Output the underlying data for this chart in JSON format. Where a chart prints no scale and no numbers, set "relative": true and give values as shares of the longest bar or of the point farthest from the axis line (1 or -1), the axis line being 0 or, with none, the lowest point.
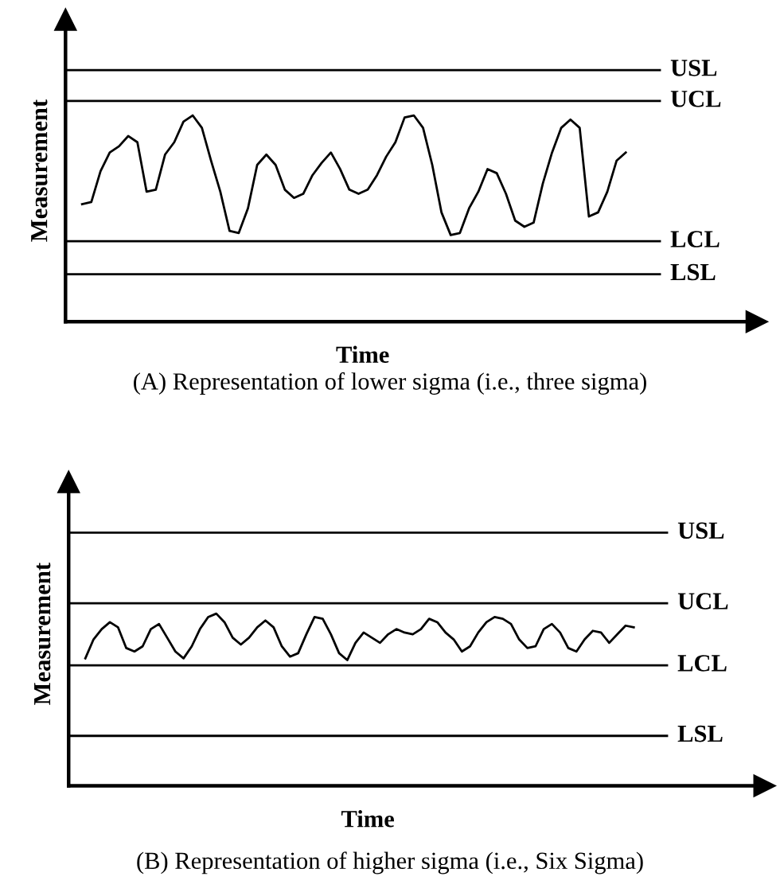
{
  "chart_data": [
    {
      "type": "line",
      "relative": true,
      "xlabel": "Time",
      "ylabel": "Measurement",
      "tick_labels": false,
      "categories": [
        null,
        null,
        null,
        null,
        null,
        null,
        null,
        null,
        null,
        null,
        null,
        null,
        null,
        null,
        null,
        null,
        null,
        null,
        null,
        null,
        null,
        null,
        null,
        null,
        null,
        null,
        null,
        null,
        null,
        null,
        null,
        null,
        null,
        null,
        null,
        null,
        null,
        null,
        null,
        null,
        null,
        null,
        null,
        null,
        null,
        null,
        null,
        null,
        null,
        null,
        null,
        null,
        null,
        null,
        null,
        null,
        null,
        null,
        null,
        null
      ],
      "series": [
        {
          "color": "#000000",
          "values": [
            0.57,
            0.58,
            0.73,
            0.82,
            0.85,
            0.9,
            0.87,
            0.63,
            0.64,
            0.81,
            0.87,
            0.97,
            1.0,
            0.94,
            0.78,
            0.63,
            0.44,
            0.43,
            0.55,
            0.76,
            0.81,
            0.76,
            0.64,
            0.6,
            0.62,
            0.71,
            0.77,
            0.82,
            0.74,
            0.64,
            0.62,
            0.64,
            0.71,
            0.8,
            0.87,
            0.99,
            1.0,
            0.94,
            0.76,
            0.53,
            0.42,
            0.43,
            0.55,
            0.63,
            0.74,
            0.72,
            0.62,
            0.49,
            0.46,
            0.48,
            0.67,
            0.82,
            0.94,
            0.98,
            0.94,
            0.51,
            0.53,
            0.63,
            0.78,
            0.82
          ]
        }
      ],
      "ref_lines": [
        {
          "axis": "y",
          "value": 1.22,
          "label": "USL"
        },
        {
          "axis": "y",
          "value": 1.07,
          "label": "UCL"
        },
        {
          "axis": "y",
          "value": 0.39,
          "label": "LCL"
        },
        {
          "axis": "y",
          "value": 0.23,
          "label": "LSL"
        }
      ],
      "annotations": [
        "(A) Representation of lower sigma (i.e., three sigma)"
      ]
    },
    {
      "type": "line",
      "relative": true,
      "xlabel": "Time",
      "ylabel": "Measurement",
      "tick_labels": false,
      "categories": [
        null,
        null,
        null,
        null,
        null,
        null,
        null,
        null,
        null,
        null,
        null,
        null,
        null,
        null,
        null,
        null,
        null,
        null,
        null,
        null,
        null,
        null,
        null,
        null,
        null,
        null,
        null,
        null,
        null,
        null,
        null,
        null,
        null,
        null,
        null,
        null,
        null,
        null,
        null,
        null,
        null,
        null,
        null,
        null,
        null,
        null,
        null,
        null,
        null,
        null,
        null,
        null,
        null,
        null,
        null,
        null,
        null,
        null,
        null,
        null,
        null,
        null,
        null,
        null,
        null,
        null,
        null,
        null
      ],
      "series": [
        {
          "color": "#000000",
          "values": [
            0.74,
            0.85,
            0.91,
            0.95,
            0.92,
            0.8,
            0.78,
            0.81,
            0.91,
            0.94,
            0.86,
            0.78,
            0.74,
            0.81,
            0.91,
            0.98,
            1.0,
            0.95,
            0.86,
            0.82,
            0.86,
            0.92,
            0.96,
            0.92,
            0.81,
            0.75,
            0.77,
            0.88,
            0.98,
            0.97,
            0.88,
            0.77,
            0.73,
            0.83,
            0.89,
            0.86,
            0.83,
            0.88,
            0.91,
            0.89,
            0.88,
            0.91,
            0.97,
            0.95,
            0.89,
            0.85,
            0.78,
            0.81,
            0.89,
            0.95,
            0.98,
            0.97,
            0.94,
            0.85,
            0.8,
            0.81,
            0.91,
            0.94,
            0.89,
            0.8,
            0.78,
            0.85,
            0.9,
            0.89,
            0.83,
            0.88,
            0.93,
            0.92
          ]
        }
      ],
      "ref_lines": [
        {
          "axis": "y",
          "value": 1.47,
          "label": "USL"
        },
        {
          "axis": "y",
          "value": 1.06,
          "label": "UCL"
        },
        {
          "axis": "y",
          "value": 0.7,
          "label": "LCL"
        },
        {
          "axis": "y",
          "value": 0.29,
          "label": "LSL"
        }
      ],
      "annotations": [
        "(B) Representation of higher sigma (i.e., Six Sigma)"
      ]
    }
  ]
}
